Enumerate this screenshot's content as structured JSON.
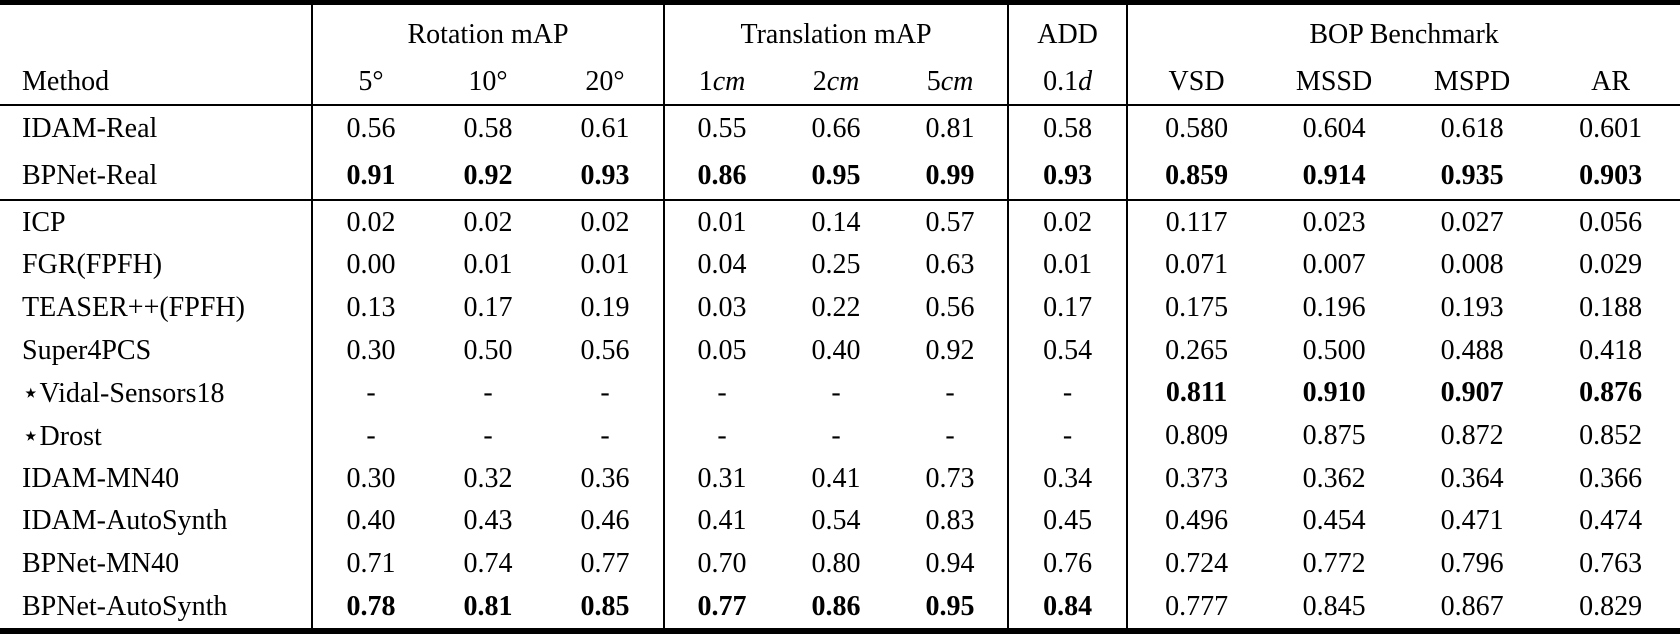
{
  "page": {
    "background": "#ffffff",
    "text_color": "#000000",
    "rule_color": "#000000"
  },
  "table": {
    "groups": [
      {
        "label": "",
        "span": 1
      },
      {
        "label": "Rotation mAP",
        "span": 3
      },
      {
        "label": "Translation mAP",
        "span": 3
      },
      {
        "label": "ADD",
        "span": 1
      },
      {
        "label": "BOP Benchmark",
        "span": 4
      }
    ],
    "columns": [
      {
        "label": "Method",
        "unit": ""
      },
      {
        "label": "5°",
        "unit": ""
      },
      {
        "label": "10°",
        "unit": ""
      },
      {
        "label": "20°",
        "unit": ""
      },
      {
        "label": "1",
        "unit": "cm"
      },
      {
        "label": "2",
        "unit": "cm"
      },
      {
        "label": "5",
        "unit": "cm"
      },
      {
        "label": "0.1",
        "unit": "d"
      },
      {
        "label": "VSD",
        "unit": ""
      },
      {
        "label": "MSSD",
        "unit": ""
      },
      {
        "label": "MSPD",
        "unit": ""
      },
      {
        "label": "AR",
        "unit": ""
      }
    ],
    "sections": [
      {
        "rows": [
          {
            "method": "IDAM-Real",
            "values": [
              "0.56",
              "0.58",
              "0.61",
              "0.55",
              "0.66",
              "0.81",
              "0.58",
              "0.580",
              "0.604",
              "0.618",
              "0.601"
            ],
            "bold": []
          },
          {
            "method": "BPNet-Real",
            "values": [
              "0.91",
              "0.92",
              "0.93",
              "0.86",
              "0.95",
              "0.99",
              "0.93",
              "0.859",
              "0.914",
              "0.935",
              "0.903"
            ],
            "bold": [
              0,
              1,
              2,
              3,
              4,
              5,
              6,
              7,
              8,
              9,
              10
            ]
          }
        ]
      },
      {
        "rows": [
          {
            "method": "ICP",
            "values": [
              "0.02",
              "0.02",
              "0.02",
              "0.01",
              "0.14",
              "0.57",
              "0.02",
              "0.117",
              "0.023",
              "0.027",
              "0.056"
            ],
            "bold": []
          },
          {
            "method": "FGR(FPFH)",
            "values": [
              "0.00",
              "0.01",
              "0.01",
              "0.04",
              "0.25",
              "0.63",
              "0.01",
              "0.071",
              "0.007",
              "0.008",
              "0.029"
            ],
            "bold": []
          },
          {
            "method": "TEASER++(FPFH)",
            "values": [
              "0.13",
              "0.17",
              "0.19",
              "0.03",
              "0.22",
              "0.56",
              "0.17",
              "0.175",
              "0.196",
              "0.193",
              "0.188"
            ],
            "bold": []
          },
          {
            "method": "Super4PCS",
            "values": [
              "0.30",
              "0.50",
              "0.56",
              "0.05",
              "0.40",
              "0.92",
              "0.54",
              "0.265",
              "0.500",
              "0.488",
              "0.418"
            ],
            "bold": []
          },
          {
            "method": "⋆Vidal-Sensors18",
            "values": [
              "-",
              "-",
              "-",
              "-",
              "-",
              "-",
              "-",
              "0.811",
              "0.910",
              "0.907",
              "0.876"
            ],
            "bold": [
              7,
              8,
              9,
              10
            ]
          },
          {
            "method": "⋆Drost",
            "values": [
              "-",
              "-",
              "-",
              "-",
              "-",
              "-",
              "-",
              "0.809",
              "0.875",
              "0.872",
              "0.852"
            ],
            "bold": []
          },
          {
            "method": "IDAM-MN40",
            "values": [
              "0.30",
              "0.32",
              "0.36",
              "0.31",
              "0.41",
              "0.73",
              "0.34",
              "0.373",
              "0.362",
              "0.364",
              "0.366"
            ],
            "bold": []
          },
          {
            "method": "IDAM-AutoSynth",
            "values": [
              "0.40",
              "0.43",
              "0.46",
              "0.41",
              "0.54",
              "0.83",
              "0.45",
              "0.496",
              "0.454",
              "0.471",
              "0.474"
            ],
            "bold": []
          },
          {
            "method": "BPNet-MN40",
            "values": [
              "0.71",
              "0.74",
              "0.77",
              "0.70",
              "0.80",
              "0.94",
              "0.76",
              "0.724",
              "0.772",
              "0.796",
              "0.763"
            ],
            "bold": []
          },
          {
            "method": "BPNet-AutoSynth",
            "values": [
              "0.78",
              "0.81",
              "0.85",
              "0.77",
              "0.86",
              "0.95",
              "0.84",
              "0.777",
              "0.845",
              "0.867",
              "0.829"
            ],
            "bold": [
              0,
              1,
              2,
              3,
              4,
              5,
              6
            ]
          }
        ]
      }
    ]
  }
}
